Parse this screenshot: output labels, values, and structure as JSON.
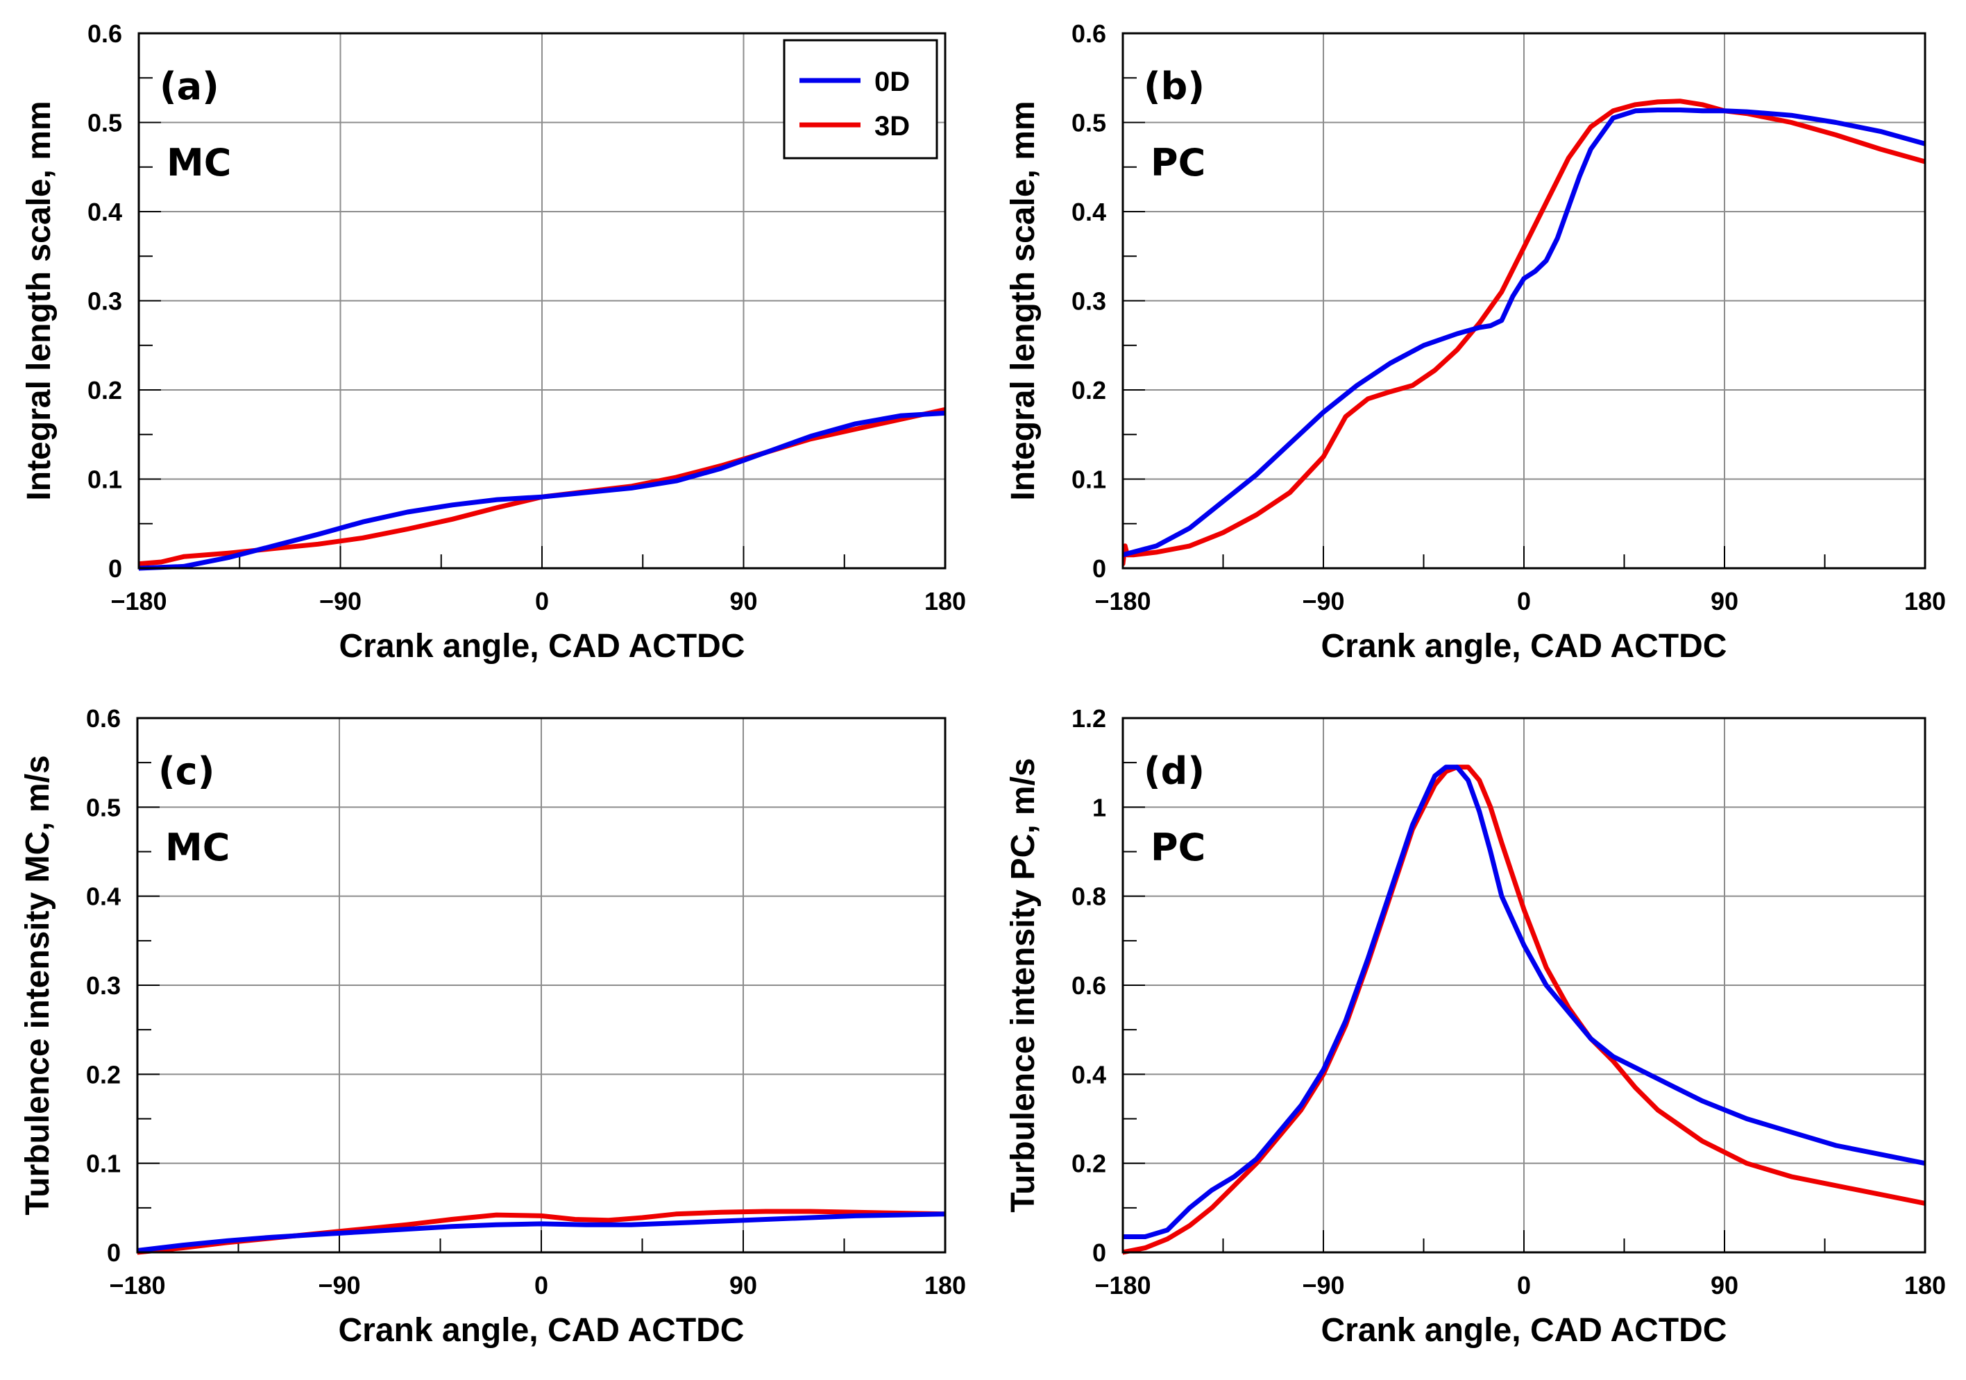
{
  "colors": {
    "series_0D": "#0000ee",
    "series_3D": "#ee0000",
    "grid": "#8c8c8c",
    "axis": "#000000"
  },
  "legend": {
    "entries": [
      "0D",
      "3D"
    ]
  },
  "chart_data": [
    {
      "type": "line",
      "panel": "(a)",
      "annotation": "MC",
      "xlabel": "Crank angle, CAD ACTDC",
      "ylabel": "Integral length scale, mm",
      "xlim": [
        -180,
        180
      ],
      "ylim": [
        0,
        0.6
      ],
      "xticks": [
        "−180",
        "−90",
        "0",
        "90",
        "180"
      ],
      "xtick_values": [
        -180,
        -90,
        0,
        90,
        180
      ],
      "yticks": [
        "0",
        "0.1",
        "0.2",
        "0.3",
        "0.4",
        "0.5",
        "0.6"
      ],
      "ytick_values": [
        0,
        0.1,
        0.2,
        0.3,
        0.4,
        0.5,
        0.6
      ],
      "grid": true,
      "series": [
        {
          "name": "0D",
          "x": [
            -180,
            -160,
            -140,
            -120,
            -100,
            -80,
            -60,
            -40,
            -20,
            0,
            20,
            40,
            60,
            80,
            100,
            120,
            140,
            160,
            180
          ],
          "y": [
            0.0,
            0.002,
            0.012,
            0.025,
            0.038,
            0.052,
            0.063,
            0.071,
            0.077,
            0.08,
            0.085,
            0.09,
            0.098,
            0.112,
            0.13,
            0.148,
            0.162,
            0.171,
            0.174
          ]
        },
        {
          "name": "3D",
          "x": [
            -180,
            -170,
            -160,
            -140,
            -120,
            -100,
            -80,
            -60,
            -40,
            -20,
            0,
            20,
            40,
            60,
            80,
            100,
            120,
            140,
            160,
            180
          ],
          "y": [
            0.005,
            0.007,
            0.013,
            0.017,
            0.022,
            0.027,
            0.034,
            0.044,
            0.055,
            0.068,
            0.08,
            0.086,
            0.092,
            0.102,
            0.115,
            0.13,
            0.145,
            0.156,
            0.167,
            0.178
          ]
        }
      ]
    },
    {
      "type": "line",
      "panel": "(b)",
      "annotation": "PC",
      "xlabel": "Crank angle, CAD ACTDC",
      "ylabel": "Integral length scale, mm",
      "xlim": [
        -180,
        180
      ],
      "ylim": [
        0,
        0.6
      ],
      "xticks": [
        "−180",
        "−90",
        "0",
        "90",
        "180"
      ],
      "xtick_values": [
        -180,
        -90,
        0,
        90,
        180
      ],
      "yticks": [
        "0",
        "0.1",
        "0.2",
        "0.3",
        "0.4",
        "0.5",
        "0.6"
      ],
      "ytick_values": [
        0,
        0.1,
        0.2,
        0.3,
        0.4,
        0.5,
        0.6
      ],
      "grid": true,
      "series": [
        {
          "name": "0D",
          "x": [
            -180,
            -165,
            -150,
            -135,
            -120,
            -105,
            -90,
            -75,
            -60,
            -45,
            -30,
            -20,
            -15,
            -10,
            -5,
            0,
            5,
            10,
            15,
            20,
            25,
            30,
            40,
            50,
            60,
            70,
            80,
            90,
            100,
            120,
            140,
            160,
            180
          ],
          "y": [
            0.015,
            0.025,
            0.045,
            0.075,
            0.105,
            0.14,
            0.175,
            0.205,
            0.23,
            0.25,
            0.263,
            0.27,
            0.272,
            0.278,
            0.305,
            0.325,
            0.333,
            0.345,
            0.37,
            0.405,
            0.44,
            0.47,
            0.505,
            0.513,
            0.514,
            0.514,
            0.513,
            0.513,
            0.512,
            0.508,
            0.5,
            0.49,
            0.476
          ]
        },
        {
          "name": "3D",
          "x": [
            -180,
            -179,
            -178,
            -175,
            -165,
            -150,
            -135,
            -120,
            -105,
            -90,
            -80,
            -70,
            -60,
            -50,
            -40,
            -30,
            -20,
            -10,
            0,
            10,
            20,
            30,
            40,
            50,
            60,
            70,
            80,
            90,
            100,
            120,
            140,
            160,
            180
          ],
          "y": [
            0.005,
            0.025,
            0.015,
            0.015,
            0.018,
            0.025,
            0.04,
            0.06,
            0.085,
            0.125,
            0.17,
            0.19,
            0.198,
            0.205,
            0.222,
            0.245,
            0.275,
            0.31,
            0.36,
            0.41,
            0.46,
            0.495,
            0.513,
            0.52,
            0.523,
            0.524,
            0.52,
            0.513,
            0.51,
            0.5,
            0.486,
            0.47,
            0.456
          ]
        }
      ]
    },
    {
      "type": "line",
      "panel": "(c)",
      "annotation": "MC",
      "xlabel": "Crank angle, CAD ACTDC",
      "ylabel": "Turbulence intensity MC, m/s",
      "xlim": [
        -180,
        180
      ],
      "ylim": [
        0,
        0.6
      ],
      "xticks": [
        "−180",
        "−90",
        "0",
        "90",
        "180"
      ],
      "xtick_values": [
        -180,
        -90,
        0,
        90,
        180
      ],
      "yticks": [
        "0",
        "0.1",
        "0.2",
        "0.3",
        "0.4",
        "0.5",
        "0.6"
      ],
      "ytick_values": [
        0,
        0.1,
        0.2,
        0.3,
        0.4,
        0.5,
        0.6
      ],
      "grid": true,
      "series": [
        {
          "name": "0D",
          "x": [
            -180,
            -160,
            -140,
            -120,
            -100,
            -80,
            -60,
            -40,
            -20,
            0,
            20,
            40,
            60,
            80,
            100,
            120,
            140,
            160,
            180
          ],
          "y": [
            0.002,
            0.008,
            0.013,
            0.017,
            0.02,
            0.023,
            0.026,
            0.029,
            0.031,
            0.032,
            0.031,
            0.031,
            0.033,
            0.035,
            0.037,
            0.039,
            0.041,
            0.042,
            0.043
          ]
        },
        {
          "name": "3D",
          "x": [
            -180,
            -160,
            -140,
            -120,
            -100,
            -80,
            -60,
            -40,
            -20,
            0,
            15,
            30,
            45,
            60,
            80,
            100,
            120,
            140,
            160,
            180
          ],
          "y": [
            0.0,
            0.005,
            0.011,
            0.016,
            0.021,
            0.026,
            0.031,
            0.037,
            0.042,
            0.041,
            0.037,
            0.036,
            0.039,
            0.043,
            0.045,
            0.046,
            0.046,
            0.045,
            0.044,
            0.043
          ]
        }
      ]
    },
    {
      "type": "line",
      "panel": "(d)",
      "annotation": "PC",
      "xlabel": "Crank angle, CAD ACTDC",
      "ylabel": "Turbulence intensity PC, m/s",
      "xlim": [
        -180,
        180
      ],
      "ylim": [
        0,
        1.2
      ],
      "xticks": [
        "−180",
        "−90",
        "0",
        "90",
        "180"
      ],
      "xtick_values": [
        -180,
        -90,
        0,
        90,
        180
      ],
      "yticks": [
        "0",
        "0.2",
        "0.4",
        "0.6",
        "0.8",
        "1",
        "1.2"
      ],
      "ytick_values": [
        0,
        0.2,
        0.4,
        0.6,
        0.8,
        1.0,
        1.2
      ],
      "grid": true,
      "series": [
        {
          "name": "0D",
          "x": [
            -180,
            -170,
            -160,
            -150,
            -140,
            -130,
            -120,
            -110,
            -100,
            -90,
            -80,
            -70,
            -60,
            -50,
            -40,
            -35,
            -30,
            -25,
            -20,
            -15,
            -10,
            0,
            10,
            20,
            30,
            40,
            60,
            80,
            100,
            120,
            140,
            160,
            180
          ],
          "y": [
            0.035,
            0.035,
            0.05,
            0.1,
            0.14,
            0.17,
            0.21,
            0.27,
            0.33,
            0.41,
            0.52,
            0.66,
            0.81,
            0.96,
            1.07,
            1.09,
            1.09,
            1.06,
            0.99,
            0.9,
            0.8,
            0.69,
            0.6,
            0.54,
            0.48,
            0.44,
            0.39,
            0.34,
            0.3,
            0.27,
            0.24,
            0.22,
            0.2
          ]
        },
        {
          "name": "3D",
          "x": [
            -180,
            -170,
            -160,
            -150,
            -140,
            -130,
            -120,
            -110,
            -100,
            -90,
            -80,
            -70,
            -60,
            -50,
            -40,
            -35,
            -30,
            -25,
            -20,
            -15,
            -10,
            0,
            10,
            20,
            30,
            40,
            50,
            60,
            80,
            100,
            120,
            140,
            160,
            180
          ],
          "y": [
            0.0,
            0.01,
            0.03,
            0.06,
            0.1,
            0.15,
            0.2,
            0.26,
            0.32,
            0.4,
            0.51,
            0.65,
            0.8,
            0.95,
            1.05,
            1.08,
            1.09,
            1.09,
            1.06,
            1.0,
            0.92,
            0.77,
            0.64,
            0.55,
            0.48,
            0.43,
            0.37,
            0.32,
            0.25,
            0.2,
            0.17,
            0.15,
            0.13,
            0.11
          ]
        }
      ]
    }
  ]
}
